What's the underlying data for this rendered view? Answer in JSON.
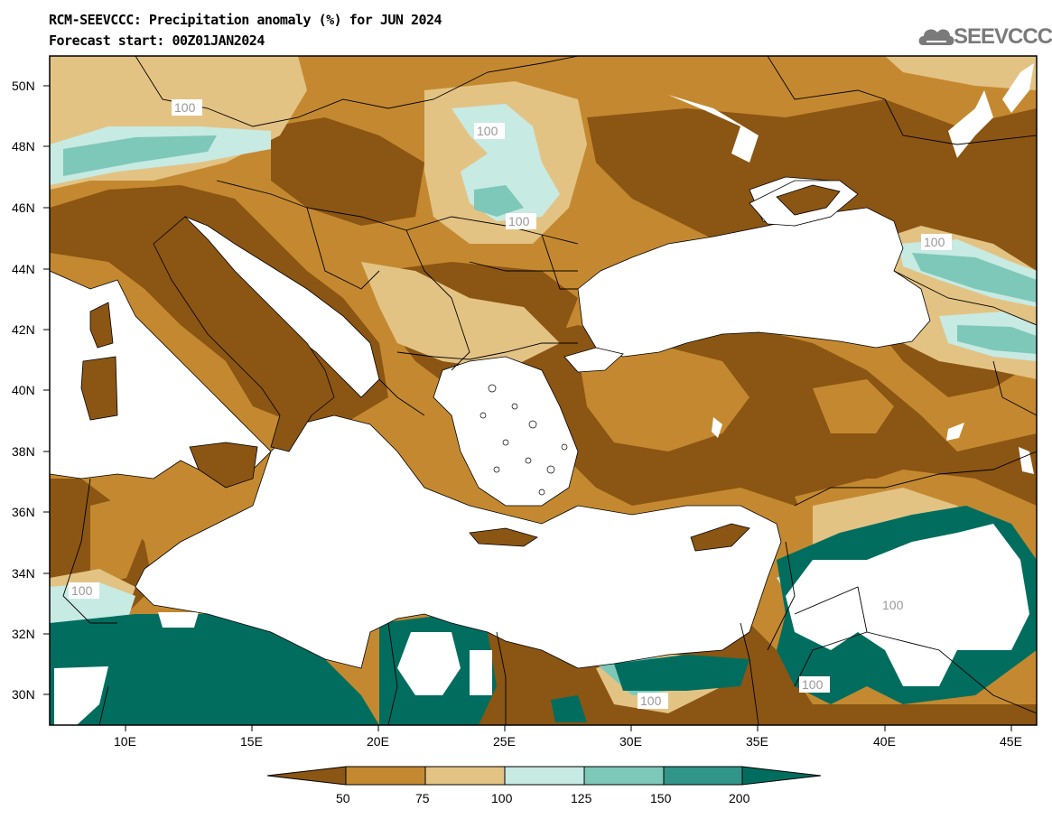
{
  "header": {
    "title": "RCM-SEEVCCC: Precipitation anomaly (%) for JUN 2024",
    "subtitle": "Forecast start: 00Z01JAN2024"
  },
  "logo": {
    "text": "SEEVCCC",
    "icon": "cloud-icon"
  },
  "axes": {
    "lat_labels": [
      "50N",
      "48N",
      "46N",
      "44N",
      "42N",
      "40N",
      "38N",
      "36N",
      "34N",
      "32N",
      "30N"
    ],
    "lon_labels": [
      "10E",
      "15E",
      "20E",
      "25E",
      "30E",
      "35E",
      "40E",
      "45E"
    ]
  },
  "contour_labels": [
    "100",
    "100",
    "100",
    "100",
    "100",
    "100",
    "100",
    "100"
  ],
  "colorbar": {
    "ticks": [
      "50",
      "75",
      "100",
      "125",
      "150",
      "200"
    ],
    "colors": [
      "#8b5513",
      "#c48930",
      "#e3c384",
      "#c7eae3",
      "#7ec8b9",
      "#31958a",
      "#016d5f"
    ]
  },
  "colors": {
    "dry_strong": "#8b5513",
    "dry": "#c48930",
    "normal_dry": "#e3c384",
    "normal_wet": "#c7eae3",
    "wet": "#7ec8b9",
    "wet_strong": "#31958a",
    "very_wet": "#016d5f",
    "sea": "#ffffff"
  }
}
